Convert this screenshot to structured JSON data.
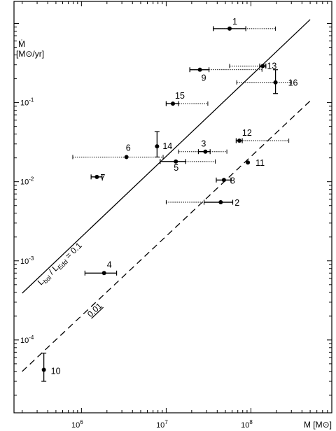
{
  "chart_data": {
    "type": "scatter",
    "title": "",
    "xlabel": "M [M⊙]",
    "ylabel_line1": "Ṁ",
    "ylabel_line2": "[M⊙/yr]",
    "x_scale": "log",
    "y_scale": "log",
    "xlim": [
      160000,
      900000000
    ],
    "ylim": [
      1.2e-05,
      1.9
    ],
    "grid": false,
    "x_ticks": [
      {
        "value": 1000000,
        "label_base": "10",
        "label_exp": "6"
      },
      {
        "value": 10000000,
        "label_base": "10",
        "label_exp": "7"
      },
      {
        "value": 100000000,
        "label_base": "10",
        "label_exp": "8"
      }
    ],
    "y_ticks": [
      {
        "value": 0.0001,
        "label_base": "10",
        "label_exp": "-4"
      },
      {
        "value": 0.001,
        "label_base": "10",
        "label_exp": "-3"
      },
      {
        "value": 0.01,
        "label_base": "10",
        "label_exp": "-2"
      },
      {
        "value": 0.1,
        "label_base": "10",
        "label_exp": "-1"
      }
    ],
    "lines": [
      {
        "label_main": "L",
        "label_sub1": "bol",
        "label_mid": " / L",
        "label_sub2": "Edd",
        "label_end": " = 0.1",
        "style": "solid",
        "x": [
          200000,
          500000000
        ],
        "y": [
          0.00039,
          1.12
        ]
      },
      {
        "label_main": "0.01",
        "style": "dashed",
        "x": [
          200000,
          500000000
        ],
        "y": [
          4e-05,
          0.105
        ]
      }
    ],
    "points": [
      {
        "id": "1",
        "x": 56000000,
        "y": 0.86,
        "x_err_solid": [
          36000000,
          87000000
        ],
        "x_err_dotted": [
          36000000,
          195000000
        ]
      },
      {
        "id": "2",
        "x": 44000000,
        "y": 0.0055,
        "x_err_solid": [
          28000000,
          61000000
        ],
        "x_err_dotted": [
          10000000,
          61000000
        ]
      },
      {
        "id": "3",
        "x": 29000000,
        "y": 0.024,
        "x_err_solid": [
          24000000,
          33000000
        ],
        "x_err_dotted": [
          14000000,
          52000000
        ]
      },
      {
        "id": "4",
        "x": 1850000,
        "y": 0.0007,
        "x_err_solid": [
          1100000,
          2600000
        ]
      },
      {
        "id": "5",
        "x": 13000000,
        "y": 0.018,
        "x_err_solid": [
          8500000,
          17000000
        ],
        "x_err_dotted": [
          8500000,
          38000000
        ]
      },
      {
        "id": "6",
        "x": 3400000,
        "y": 0.0205,
        "x_err_dotted": [
          790000,
          9200000
        ]
      },
      {
        "id": "7",
        "x": 1520000,
        "y": 0.0115,
        "x_err_solid": [
          1300000,
          1750000
        ]
      },
      {
        "id": "8",
        "x": 48000000,
        "y": 0.0105,
        "x_err_solid": [
          39000000,
          58000000
        ]
      },
      {
        "id": "9",
        "x": 25000000,
        "y": 0.26,
        "x_err_solid": [
          19000000,
          32000000
        ],
        "x_err_dotted": [
          19000000,
          135000000
        ]
      },
      {
        "id": "10",
        "x": 360000,
        "y": 4.2e-05,
        "y_err": [
          3e-05,
          6.8e-05
        ]
      },
      {
        "id": "11",
        "x": 92000000,
        "y": 0.0175
      },
      {
        "id": "12",
        "x": 73000000,
        "y": 0.033,
        "x_err_solid": [
          67000000,
          79000000
        ],
        "x_err_dotted": [
          67000000,
          280000000
        ]
      },
      {
        "id": "13",
        "x": 138000000,
        "y": 0.29,
        "x_err_solid": [
          127000000,
          150000000
        ],
        "x_err_dotted": [
          56000000,
          150000000
        ]
      },
      {
        "id": "14",
        "x": 7800000,
        "y": 0.028,
        "y_err": [
          0.0205,
          0.043
        ]
      },
      {
        "id": "15",
        "x": 12000000,
        "y": 0.097,
        "x_err_solid": [
          10000000,
          14000000
        ],
        "x_err_dotted": [
          10000000,
          31000000
        ]
      },
      {
        "id": "16",
        "x": 195000000,
        "y": 0.18,
        "x_err_dotted": [
          68000000,
          300000000
        ],
        "y_err": [
          0.13,
          0.26
        ]
      }
    ]
  }
}
